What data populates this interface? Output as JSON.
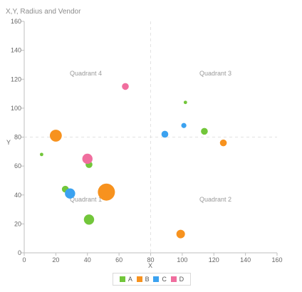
{
  "chart_data": {
    "type": "bubble",
    "title": "X,Y, Radius and Vendor",
    "xlabel": "X",
    "ylabel": "Y",
    "xlim": [
      0,
      160
    ],
    "ylim": [
      0,
      160
    ],
    "xticks": [
      0,
      20,
      40,
      60,
      80,
      100,
      120,
      140,
      160
    ],
    "yticks": [
      0,
      20,
      40,
      60,
      80,
      100,
      120,
      140,
      160
    ],
    "grid": false,
    "quadrant_lines": {
      "x": 80,
      "y": 80
    },
    "quadrant_labels": [
      {
        "text": "Quadrant 4",
        "x": 39,
        "y": 124
      },
      {
        "text": "Quadrant 3",
        "x": 121,
        "y": 124
      },
      {
        "text": "Quadrant 1",
        "x": 39,
        "y": 37
      },
      {
        "text": "Quadrant 2",
        "x": 121,
        "y": 37
      }
    ],
    "legend_position": "bottom-center",
    "series": [
      {
        "name": "A",
        "color": "#72c63a",
        "points": [
          {
            "x": 11,
            "y": 68,
            "r": 2
          },
          {
            "x": 26,
            "y": 44,
            "r": 4
          },
          {
            "x": 41,
            "y": 61,
            "r": 4
          },
          {
            "x": 41,
            "y": 23,
            "r": 6
          },
          {
            "x": 102,
            "y": 104,
            "r": 2
          },
          {
            "x": 114,
            "y": 84,
            "r": 4
          }
        ]
      },
      {
        "name": "B",
        "color": "#f7921e",
        "points": [
          {
            "x": 20,
            "y": 81,
            "r": 7
          },
          {
            "x": 52,
            "y": 42,
            "r": 10
          },
          {
            "x": 99,
            "y": 13,
            "r": 5
          },
          {
            "x": 126,
            "y": 76,
            "r": 4
          }
        ]
      },
      {
        "name": "C",
        "color": "#3ba2f0",
        "points": [
          {
            "x": 29,
            "y": 41,
            "r": 6
          },
          {
            "x": 89,
            "y": 82,
            "r": 4
          },
          {
            "x": 101,
            "y": 88,
            "r": 3
          }
        ]
      },
      {
        "name": "D",
        "color": "#f06e9e",
        "points": [
          {
            "x": 40,
            "y": 65,
            "r": 6
          },
          {
            "x": 64,
            "y": 115,
            "r": 4
          }
        ]
      }
    ]
  }
}
